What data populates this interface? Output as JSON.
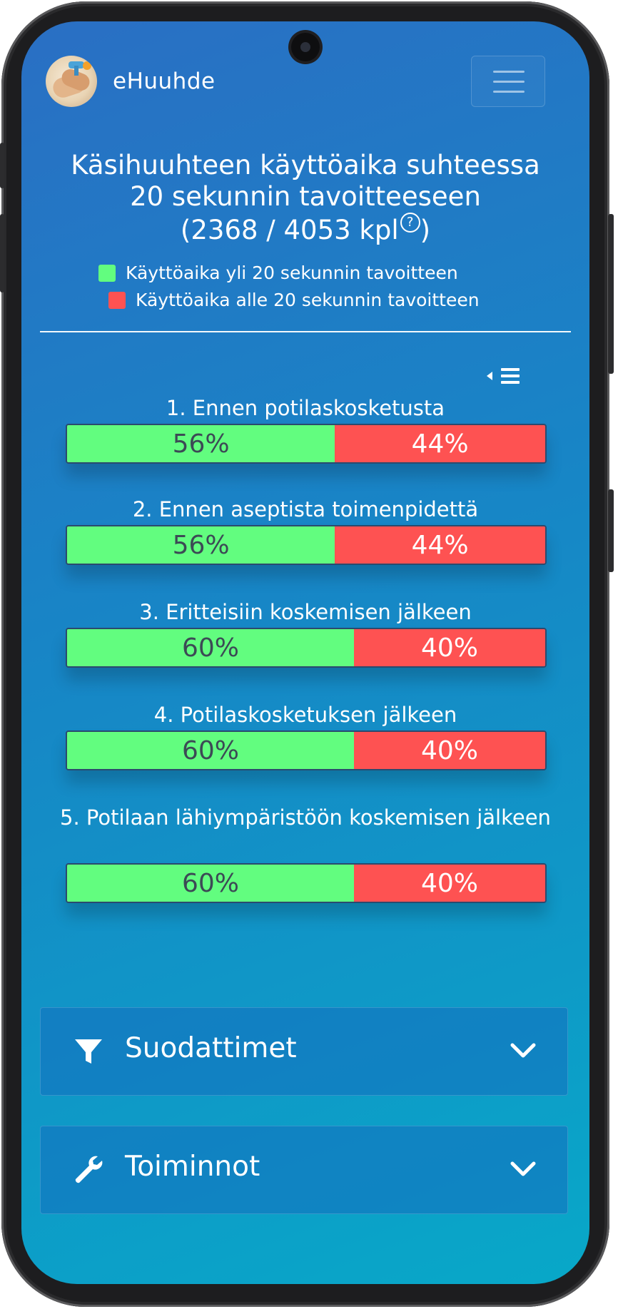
{
  "app": {
    "brand": "eHuuhde"
  },
  "chart": {
    "title_line1": "Käsihuuhteen käyttöaika suhteessa",
    "title_line2": "20 sekunnin tavoitteeseen",
    "title_line3": "(2368 / 4053 kpl",
    "title_close": ")",
    "help_glyph": "?",
    "legend": [
      {
        "label": "Käyttöaika yli 20 sekunnin tavoitteen",
        "color": "#62fd7f"
      },
      {
        "label": "Käyttöaika alle 20 sekunnin tavoitteen",
        "color": "#fe5252"
      }
    ]
  },
  "chart_data": {
    "type": "bar",
    "categories": [
      "1. Ennen potilaskosketusta",
      "2. Ennen aseptista toimenpidettä",
      "3. Eritteisiin koskemisen jälkeen",
      "4. Potilaskosketuksen jälkeen",
      "5. Potilaan lähiympäristöön koskemisen jälkeen"
    ],
    "series": [
      {
        "name": "Käyttöaika yli 20 sekunnin tavoitteen",
        "values": [
          56,
          56,
          60,
          60,
          60
        ],
        "color": "#62fd7f"
      },
      {
        "name": "Käyttöaika alle 20 sekunnin tavoitteen",
        "values": [
          44,
          44,
          40,
          40,
          40
        ],
        "color": "#fe5252"
      }
    ],
    "value_labels": [
      [
        "56%",
        "44%"
      ],
      [
        "56%",
        "44%"
      ],
      [
        "60%",
        "40%"
      ],
      [
        "60%",
        "40%"
      ],
      [
        "60%",
        "40%"
      ]
    ],
    "stacked": true,
    "orientation": "horizontal",
    "xlim": [
      0,
      100
    ]
  },
  "accordions": [
    {
      "label": "Suodattimet",
      "icon": "filter-icon"
    },
    {
      "label": "Toiminnot",
      "icon": "wrench-icon"
    }
  ]
}
